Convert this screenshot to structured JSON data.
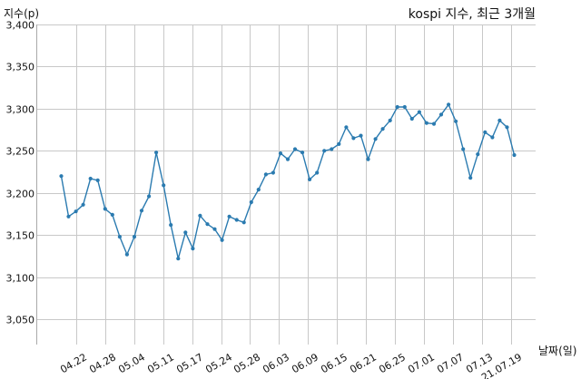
{
  "chart_data": {
    "type": "line",
    "title": "kospi 지수, 최근 3개월",
    "ylabel": "지수(p)",
    "xlabel": "날짜(일)",
    "ylim": [
      3020,
      3400
    ],
    "yticks": [
      3050,
      3100,
      3150,
      3200,
      3250,
      3300,
      3350,
      3400
    ],
    "ytick_labels": [
      "3,050",
      "3,100",
      "3,150",
      "3,200",
      "3,250",
      "3,300",
      "3,350",
      "3,400"
    ],
    "xtick_labels": [
      "04.22",
      "04.28",
      "05.04",
      "05.11",
      "05.17",
      "05.24",
      "05.28",
      "06.03",
      "06.09",
      "06.15",
      "06.21",
      "06.25",
      "07.01",
      "07.07",
      "07.13",
      "21.07.19"
    ],
    "grid": true,
    "line_color": "#2b7bb0",
    "series": [
      {
        "values": [
          3220,
          3172,
          3178,
          3186,
          3217,
          3215,
          3181,
          3174,
          3148,
          3127,
          3148,
          3179,
          3196,
          3248,
          3209,
          3162,
          3122,
          3153,
          3134,
          3173,
          3163,
          3157,
          3144,
          3172,
          3168,
          3165,
          3189,
          3204,
          3222,
          3224,
          3247,
          3240,
          3252,
          3248,
          3216,
          3224,
          3250,
          3252,
          3258,
          3278,
          3265,
          3268,
          3240,
          3264,
          3276,
          3286,
          3302,
          3302,
          3288,
          3296,
          3283,
          3282,
          3293,
          3305,
          3285,
          3252,
          3218,
          3246,
          3272,
          3266,
          3286,
          3278,
          3245
        ]
      }
    ]
  }
}
